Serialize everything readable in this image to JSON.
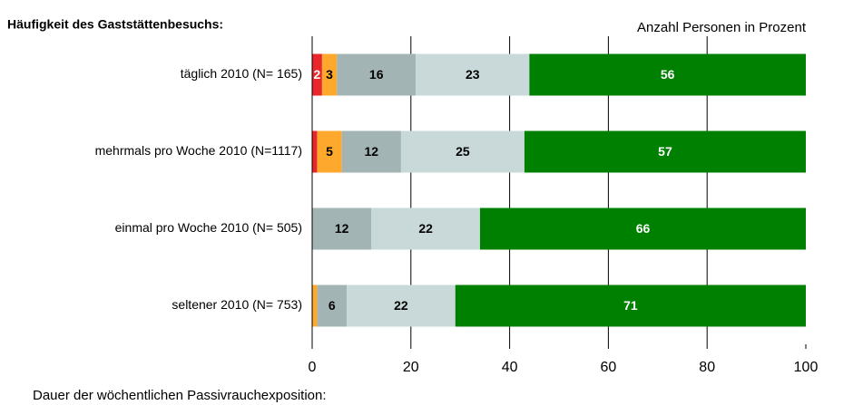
{
  "chart_data": {
    "type": "stacked_barh",
    "title": "Häufigkeit des Gaststättenbesuchs:",
    "subtitle": "Anzahl Personen in Prozent",
    "footer": "Dauer der wöchentlichen Passivrauchexposition:",
    "categories": [
      "täglich 2010 (N=  165)",
      "mehrmals pro Woche 2010 (N=1117)",
      "einmal pro Woche 2010 (N=  505)",
      "seltener 2010 (N=  753)"
    ],
    "series": [
      {
        "color": "#e8262b",
        "text_color": "#ffffff",
        "values": [
          2,
          1,
          0,
          0
        ],
        "value_labels": [
          "2",
          null,
          null,
          null
        ]
      },
      {
        "color": "#ffa82e",
        "text_color": "#000000",
        "values": [
          3,
          5,
          0,
          1
        ],
        "value_labels": [
          "3",
          "5",
          null,
          null
        ]
      },
      {
        "color": "#a3b4b4",
        "text_color": "#000000",
        "values": [
          16,
          12,
          12,
          6
        ],
        "value_labels": [
          "16",
          "12",
          "12",
          "6"
        ]
      },
      {
        "color": "#c9d9d9",
        "text_color": "#000000",
        "values": [
          23,
          25,
          22,
          22
        ],
        "value_labels": [
          "23",
          "25",
          "22",
          "22"
        ]
      },
      {
        "color": "#008000",
        "text_color": "#ffffff",
        "values": [
          56,
          57,
          66,
          71
        ],
        "value_labels": [
          "56",
          "57",
          "66",
          "71"
        ]
      }
    ],
    "xlim": [
      0,
      100
    ],
    "xticks": [
      0,
      20,
      40,
      60,
      80,
      100
    ],
    "grid": true
  }
}
